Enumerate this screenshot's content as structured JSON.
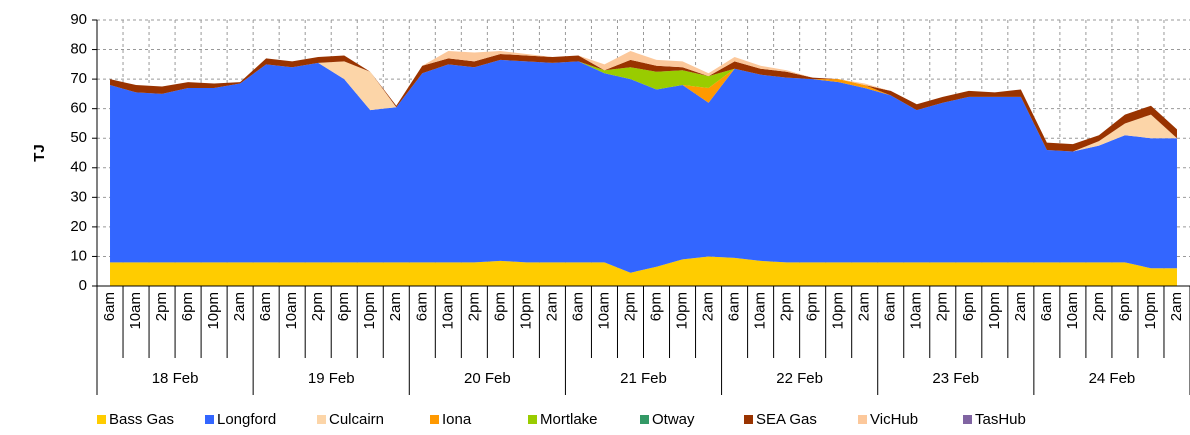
{
  "chart_data": {
    "type": "stacked_area",
    "y_label": "TJ",
    "categories": [
      "6am",
      "10am",
      "2pm",
      "6pm",
      "10pm",
      "2am",
      "6am",
      "10am",
      "2pm",
      "6pm",
      "10pm",
      "2am",
      "6am",
      "10am",
      "2pm",
      "6pm",
      "10pm",
      "2am",
      "6am",
      "10am",
      "2pm",
      "6pm",
      "10pm",
      "2am",
      "6am",
      "10am",
      "2pm",
      "6pm",
      "10pm",
      "2am",
      "6am",
      "10am",
      "2pm",
      "6pm",
      "10pm",
      "2am",
      "6am",
      "10am",
      "2pm",
      "6pm",
      "10pm",
      "2am"
    ],
    "groups": [
      "18 Feb",
      "19 Feb",
      "20 Feb",
      "21 Feb",
      "22 Feb",
      "23 Feb",
      "24 Feb"
    ],
    "ylim": [
      0,
      90
    ],
    "yticks": [
      0,
      10,
      20,
      30,
      40,
      50,
      60,
      70,
      80,
      90
    ],
    "grid": true,
    "series": [
      {
        "name": "Bass Gas",
        "color": "#ffcc00",
        "values": [
          8,
          8,
          8,
          8,
          8,
          8,
          8,
          8,
          8,
          8,
          8,
          8,
          8,
          8,
          8,
          8.5,
          8,
          8,
          8,
          8,
          4.5,
          6.5,
          9,
          10,
          9.5,
          8.5,
          8,
          8,
          8,
          8,
          8,
          8,
          8,
          8,
          8,
          8,
          8,
          8,
          8,
          8,
          6,
          6
        ]
      },
      {
        "name": "Longford",
        "color": "#3366ff",
        "values": [
          60,
          57.5,
          57,
          59,
          59,
          60.5,
          67,
          66,
          67.5,
          62,
          51.5,
          52.5,
          64,
          67,
          66,
          68,
          68,
          67.5,
          68,
          64,
          65.5,
          60,
          59,
          52,
          64,
          63,
          62.5,
          62,
          61,
          59,
          56.5,
          51.5,
          54,
          56,
          56,
          56,
          38,
          37.5,
          39.5,
          43,
          44,
          44
        ]
      },
      {
        "name": "Culcairn",
        "color": "#fcd5a8",
        "values": [
          0,
          0,
          0,
          0,
          0,
          0,
          0,
          0,
          0,
          6,
          13,
          0,
          0,
          0,
          0,
          0,
          0,
          0,
          0,
          0,
          0,
          0,
          0,
          0,
          0,
          0,
          0,
          0,
          0,
          0,
          0,
          0,
          0,
          0,
          0,
          0,
          0,
          0,
          1.5,
          4,
          8,
          0
        ]
      },
      {
        "name": "Iona",
        "color": "#ff9900",
        "values": [
          0,
          0,
          0,
          0,
          0,
          0,
          0,
          0,
          0,
          0,
          0,
          0,
          0,
          0,
          0,
          0,
          0,
          0,
          0,
          0,
          0,
          0,
          0,
          5,
          0,
          0,
          0,
          0,
          1,
          1,
          0,
          0,
          0,
          0,
          0,
          0,
          0,
          0,
          0,
          0,
          0,
          0
        ]
      },
      {
        "name": "Mortlake",
        "color": "#99cc00",
        "values": [
          0,
          0,
          0,
          0,
          0,
          0,
          0,
          0,
          0,
          0,
          0,
          0,
          0,
          0,
          0,
          0,
          0,
          0,
          0,
          1,
          4,
          6,
          5,
          4,
          0,
          0,
          0,
          0,
          0,
          0,
          0,
          0,
          0,
          0,
          0,
          0,
          0,
          0,
          0,
          0,
          0,
          0
        ]
      },
      {
        "name": "Otway",
        "color": "#339966",
        "values": [
          0,
          0,
          0,
          0,
          0,
          0,
          0,
          0,
          0,
          0,
          0,
          0,
          0,
          0,
          0,
          0,
          0,
          0,
          0,
          0,
          0,
          0,
          0,
          0,
          0,
          0,
          0,
          0,
          0,
          0,
          0,
          0,
          0,
          0,
          0,
          0,
          0,
          0,
          0,
          0,
          0,
          0
        ]
      },
      {
        "name": "SEA Gas",
        "color": "#993300",
        "values": [
          2,
          2.5,
          2.5,
          2,
          1.5,
          0.5,
          2,
          2,
          2,
          2,
          0,
          0.5,
          2.5,
          2,
          2,
          2,
          2,
          2,
          2,
          0,
          2.5,
          2,
          1,
          0,
          2.5,
          2,
          2,
          0.5,
          0,
          0,
          1.5,
          2,
          2,
          2,
          1.5,
          2.5,
          2.5,
          2.5,
          2,
          3,
          3,
          3
        ]
      },
      {
        "name": "VicHub",
        "color": "#fcc89b",
        "values": [
          0,
          0,
          0,
          0,
          0,
          0,
          0,
          0,
          0,
          0,
          0,
          0,
          0,
          2.5,
          3,
          1,
          0.5,
          0,
          0,
          2,
          3,
          2,
          2,
          1,
          1.5,
          1,
          0.5,
          0,
          0,
          0.5,
          0,
          0,
          0,
          0,
          0,
          0,
          0,
          0,
          0,
          0,
          0,
          0
        ]
      },
      {
        "name": "TasHub",
        "color": "#8064a2",
        "values": [
          0,
          0,
          0,
          0,
          0,
          0,
          0,
          0,
          0,
          0,
          0,
          0,
          0,
          0,
          0,
          0,
          0,
          0,
          0,
          0,
          0,
          0,
          0,
          0,
          0,
          0,
          0,
          0,
          0,
          0,
          0,
          0,
          0,
          0,
          0,
          0,
          0,
          0,
          0,
          0,
          0,
          0
        ]
      }
    ]
  }
}
